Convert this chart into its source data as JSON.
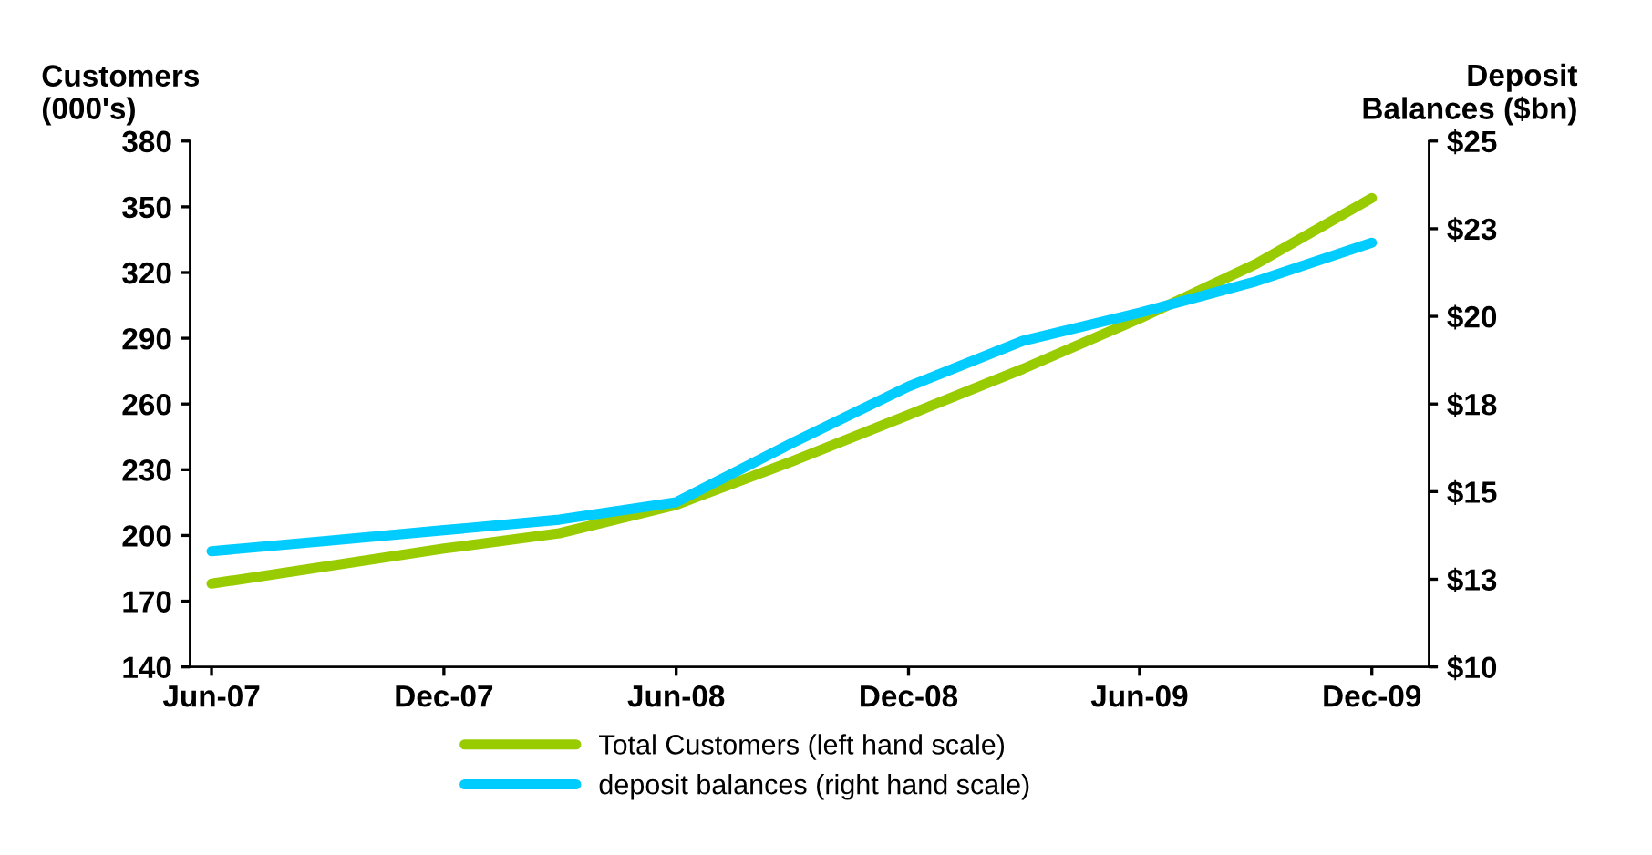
{
  "chart_data": {
    "type": "line",
    "ylabel": "Customers\n(000's)",
    "y2label": "Deposit\nBalances ($bn)",
    "x": [
      "2007-06",
      "2007-09",
      "2007-12",
      "2008-03",
      "2008-06",
      "2008-09",
      "2008-12",
      "2009-03",
      "2009-06",
      "2009-09",
      "2009-12"
    ],
    "series": [
      {
        "name": "Total Customers (left hand scale)",
        "color": "#99cc00",
        "values": [
          178,
          186,
          194,
          201,
          214,
          234,
          255,
          276,
          299,
          324,
          354
        ]
      },
      {
        "name": "deposit balances (right hand scale)",
        "color": "#00ccff",
        "axis": "y2",
        "values": [
          13.3,
          13.6,
          13.9,
          14.2,
          14.7,
          16.4,
          18.0,
          19.3,
          20.1,
          21.0,
          22.1
        ]
      }
    ],
    "xlim": [
      "2007-05-15",
      "2010-01-15"
    ],
    "xticks": [
      {
        "value": "2007-06",
        "label": "Jun-07"
      },
      {
        "value": "2007-12",
        "label": "Dec-07"
      },
      {
        "value": "2008-06",
        "label": "Jun-08"
      },
      {
        "value": "2008-12",
        "label": "Dec-08"
      },
      {
        "value": "2009-06",
        "label": "Jun-09"
      },
      {
        "value": "2009-12",
        "label": "Dec-09"
      }
    ],
    "ylim": [
      140,
      380
    ],
    "yticks": [
      140,
      170,
      200,
      230,
      260,
      290,
      320,
      350,
      380
    ],
    "y2lim": [
      10,
      25
    ],
    "y2ticks": [
      {
        "value": 10,
        "label": "$10"
      },
      {
        "value": 12.5,
        "label": "$13"
      },
      {
        "value": 15,
        "label": "$15"
      },
      {
        "value": 17.5,
        "label": "$18"
      },
      {
        "value": 20,
        "label": "$20"
      },
      {
        "value": 22.5,
        "label": "$23"
      },
      {
        "value": 25,
        "label": "$25"
      }
    ],
    "legend": "bottom",
    "line_style": "solid",
    "marker": "none",
    "grid": false
  }
}
